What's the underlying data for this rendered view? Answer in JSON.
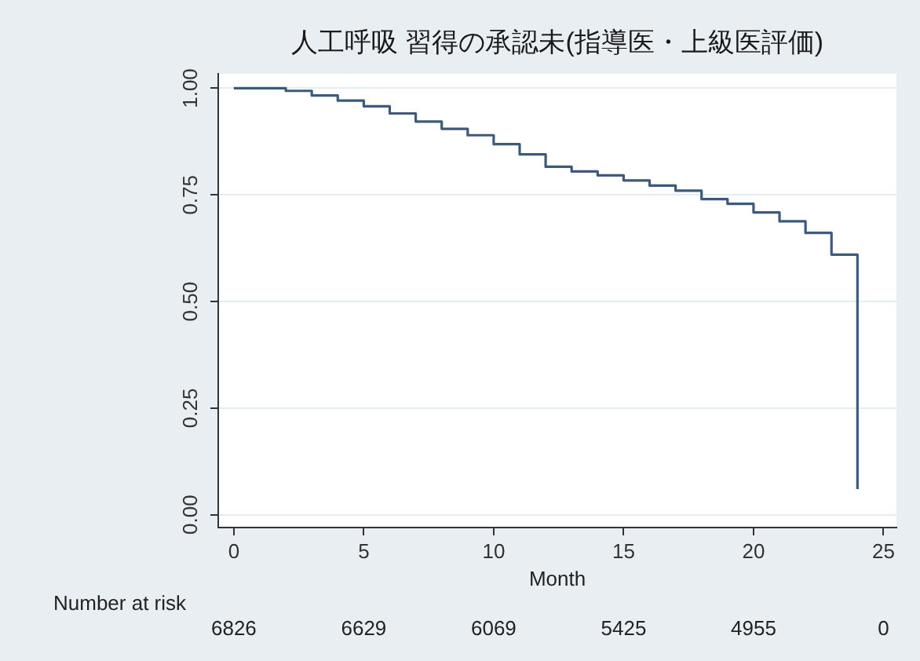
{
  "chart_data": {
    "type": "step",
    "title": "人工呼吸 習得の承認未(指導医・上級医評価)",
    "xlabel": "Month",
    "x": [
      0,
      2,
      3,
      4,
      5,
      6,
      7,
      8,
      9,
      10,
      11,
      12,
      13,
      14,
      15,
      16,
      17,
      18,
      19,
      20,
      21,
      22,
      23,
      24
    ],
    "series": [
      {
        "color": "#3d5a7a",
        "values": [
          1,
          0.994,
          0.983,
          0.971,
          0.958,
          0.941,
          0.922,
          0.905,
          0.89,
          0.869,
          0.845,
          0.816,
          0.805,
          0.796,
          0.784,
          0.772,
          0.76,
          0.74,
          0.729,
          0.709,
          0.688,
          0.661,
          0.61,
          0.06
        ]
      }
    ],
    "xlim": [
      -0.6,
      25.5
    ],
    "xticks": [
      0,
      5,
      10,
      15,
      20,
      25
    ],
    "ylim": [
      -0.03,
      1.034
    ],
    "yticks": [
      {
        "value": 0,
        "label": "0.00"
      },
      {
        "value": 0.25,
        "label": "0.25"
      },
      {
        "value": 0.5,
        "label": "0.50"
      },
      {
        "value": 0.75,
        "label": "0.75"
      },
      {
        "value": 1,
        "label": "1.00"
      }
    ],
    "grid": "y",
    "legend": false,
    "marker": "none",
    "line_style": "solid",
    "annotations": [
      "Number at risk",
      "6826",
      "6629",
      "6069",
      "5425",
      "4955",
      "0"
    ]
  }
}
